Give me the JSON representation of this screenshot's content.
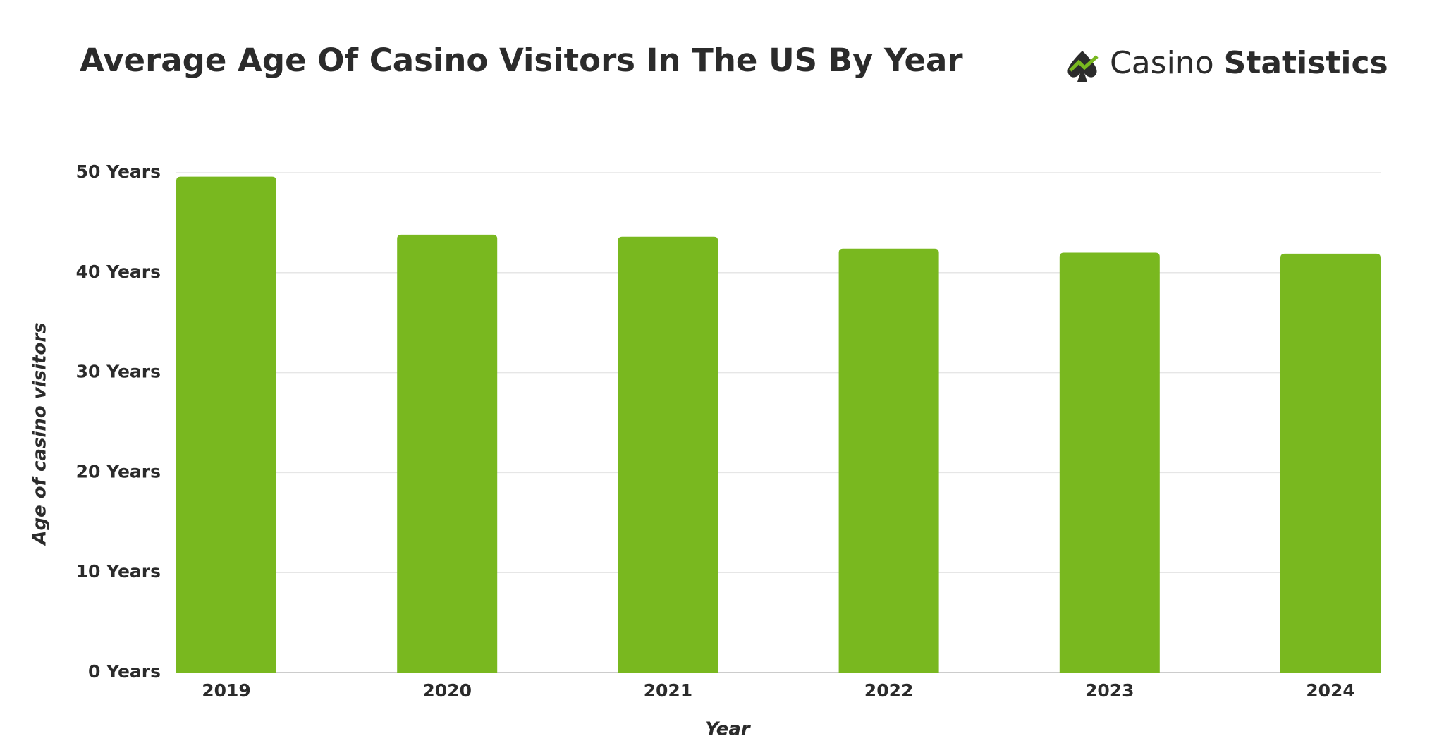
{
  "chart_data": {
    "type": "bar",
    "title": "Average Age Of Casino Visitors In The US By Year",
    "logo": {
      "light": "Casino",
      "bold": "Statistics"
    },
    "x_label": "Year",
    "y_label": "Age of casino visitors",
    "categories": [
      "2019",
      "2020",
      "2021",
      "2022",
      "2023",
      "2024"
    ],
    "values": [
      49.6,
      43.8,
      43.6,
      42.4,
      42.0,
      41.9
    ],
    "color": "#79b81f",
    "ylim": [
      0,
      50
    ],
    "yticks": [
      {
        "value": 0,
        "label": "0 Years"
      },
      {
        "value": 10,
        "label": "10 Years"
      },
      {
        "value": 20,
        "label": "20 Years"
      },
      {
        "value": 30,
        "label": "30 Years"
      },
      {
        "value": 40,
        "label": "40 Years"
      },
      {
        "value": 50,
        "label": "50 Years"
      }
    ],
    "grid": true
  }
}
